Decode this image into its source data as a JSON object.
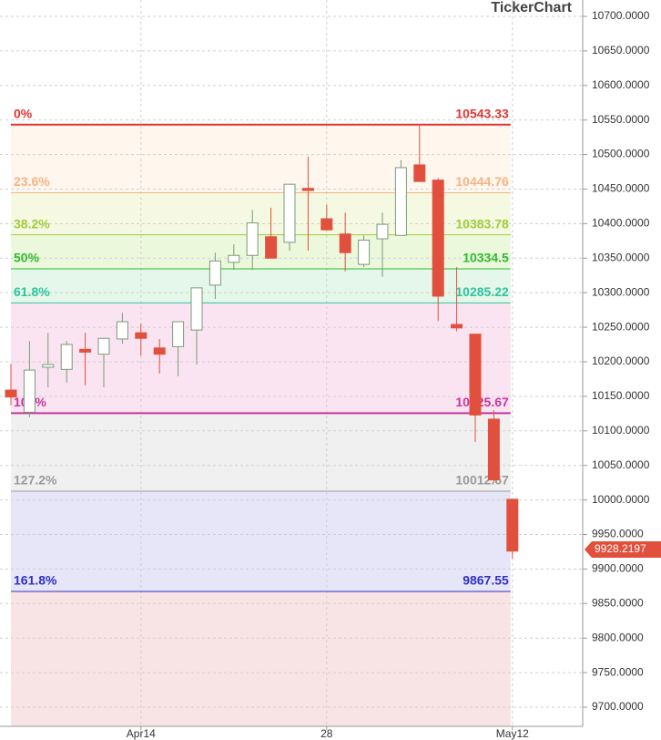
{
  "chart_data": {
    "type": "candlestick",
    "watermark": "TickerChart",
    "categories": [
      null,
      null,
      null,
      null,
      null,
      null,
      null,
      "Apr14",
      null,
      null,
      null,
      null,
      null,
      null,
      null,
      null,
      null,
      "28",
      null,
      null,
      null,
      null,
      null,
      null,
      null,
      null,
      null,
      "May12"
    ],
    "series": [
      {
        "name": "open",
        "values": [
          10159,
          10127,
          10192,
          10189,
          10218,
          10211,
          10233,
          10242,
          10220,
          10222,
          10246,
          10311,
          10344,
          10354,
          10381,
          10373,
          10451,
          10407,
          10385,
          10341,
          10378,
          10383,
          10485,
          10463,
          10254,
          10240,
          10117,
          10001
        ]
      },
      {
        "name": "high",
        "values": [
          10197,
          10230,
          10242,
          10230,
          10242,
          10234,
          10271,
          10255,
          10233,
          10258,
          10307,
          10358,
          10370,
          10420,
          10423,
          10457,
          10497,
          10427,
          10416,
          10383,
          10416,
          10492,
          10542,
          10466,
          10337,
          10240,
          10130,
          10001
        ]
      },
      {
        "name": "low",
        "values": [
          10137,
          10120,
          10163,
          10170,
          10166,
          10163,
          10226,
          10209,
          10183,
          10179,
          10196,
          10291,
          10333,
          10333,
          10350,
          10361,
          10361,
          10390,
          10331,
          10337,
          10323,
          10383,
          10461,
          10259,
          10244,
          10084,
          10025,
          9915
        ]
      },
      {
        "name": "close",
        "values": [
          10149,
          10188,
          10196,
          10225,
          10214,
          10234,
          10258,
          10234,
          10211,
          10258,
          10307,
          10346,
          10354,
          10401,
          10350,
          10457,
          10448,
          10391,
          10358,
          10376,
          10399,
          10481,
          10461,
          10295,
          10249,
          10123,
          10029,
          9926
        ]
      }
    ],
    "up_color": "#7a9a7a",
    "down_color": "#e0503c",
    "fib_levels": [
      {
        "name": "0%",
        "value": 10543.33,
        "color": "#e03434",
        "zone": "#fff6ee"
      },
      {
        "name": "23.6%",
        "value": 10444.76,
        "color": "#f5b584",
        "zone": "#f6f9e2"
      },
      {
        "name": "38.2%",
        "value": 10383.78,
        "color": "#a0cc3a",
        "zone": "#ecf8dc"
      },
      {
        "name": "50%",
        "value": 10334.5,
        "color": "#2dbb2d",
        "zone": "#e4f7ea"
      },
      {
        "name": "61.8%",
        "value": 10285.22,
        "color": "#2ec49e",
        "zone": "#fbe4f1"
      },
      {
        "name": "100%",
        "value": 10125.67,
        "color": "#c8359e",
        "zone": "#f0f0f0"
      },
      {
        "name": "127.2%",
        "value": 10012.67,
        "color": "#9a9a9a",
        "zone": "#e6e6f8"
      },
      {
        "name": "161.8%",
        "value": 9867.55,
        "color": "#3030c8",
        "zone": "#f8e4e4"
      }
    ],
    "last_price": 9928.2197,
    "ylim": [
      9672.3,
      10723.7
    ],
    "yticks": [
      {
        "value": 9700,
        "label": "9700.0000"
      },
      {
        "value": 9750,
        "label": "9750.0000"
      },
      {
        "value": 9800,
        "label": "9800.0000"
      },
      {
        "value": 9850,
        "label": "9850.0000"
      },
      {
        "value": 9900,
        "label": "9900.0000"
      },
      {
        "value": 9950,
        "label": "9950.0000"
      },
      {
        "value": 10000,
        "label": "10000.0000"
      },
      {
        "value": 10050,
        "label": "10050.0000"
      },
      {
        "value": 10100,
        "label": "10100.0000"
      },
      {
        "value": 10150,
        "label": "10150.0000"
      },
      {
        "value": 10200,
        "label": "10200.0000"
      },
      {
        "value": 10250,
        "label": "10250.0000"
      },
      {
        "value": 10300,
        "label": "10300.0000"
      },
      {
        "value": 10350,
        "label": "10350.0000"
      },
      {
        "value": 10400,
        "label": "10400.0000"
      },
      {
        "value": 10450,
        "label": "10450.0000"
      },
      {
        "value": 10500,
        "label": "10500.0000"
      },
      {
        "value": 10550,
        "label": "10550.0000"
      },
      {
        "value": 10600,
        "label": "10600.0000"
      },
      {
        "value": 10650,
        "label": "10650.0000"
      },
      {
        "value": 10700,
        "label": "10700.0000"
      }
    ],
    "grid": true
  }
}
